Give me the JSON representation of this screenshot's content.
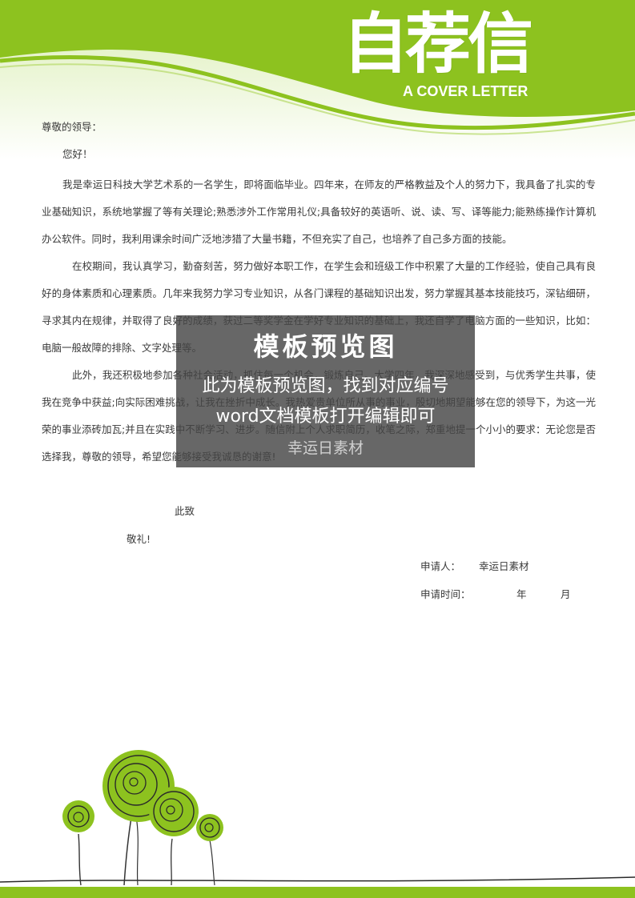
{
  "header": {
    "title": "自荐信",
    "subtitle": "A COVER LETTER"
  },
  "colors": {
    "brand_green": "#8dc21f",
    "light_green": "#e8f2cf",
    "text": "#3a3a3a",
    "watermark_bg": "#464646"
  },
  "letter": {
    "salutation": "尊敬的领导：",
    "greeting": "您好！",
    "p1": "我是幸运日科技大学艺术系的一名学生，即将面临毕业。四年来，在师友的严格教益及个人的努力下，我具备了扎实的专业基础知识，系统地掌握了等有关理论;熟悉涉外工作常用礼仪;具备较好的英语听、说、读、写、译等能力;能熟练操作计算机办公软件。同时，我利用课余时间广泛地涉猎了大量书籍，不但充实了自己，也培养了自己多方面的技能。",
    "p2": "在校期间，我认真学习，勤奋刻苦，努力做好本职工作，在学生会和班级工作中积累了大量的工作经验，使自己具有良好的身体素质和心理素质。几年来我努力学习专业知识，从各门课程的基础知识出发，努力掌握其基本技能技巧，深钻细研，寻求其内在规律，并取得了良好的成绩，获过二等奖学金在学好专业知识的基础上，我还自学了电脑方面的一些知识，比如：电脑一般故障的排除、文字处理等。",
    "p3": "此外，我还积极地参加各种社会活动，抓住每一个机会，锻炼自己。大学四年，我深深地感受到，与优秀学生共事，使我在竞争中获益;向实际困难挑战，让我在挫折中成长。我热爱贵单位所从事的事业，殷切地期望能够在您的领导下，为这一光荣的事业添砖加瓦;并且在实践中不断学习、进步。随信附上个人求职简历，收笔之际，郑重地提一个小小的要求：无论您是否选择我，尊敬的领导，希望您能够接受我诚恳的谢意!",
    "closing1": "此致",
    "closing2": "敬礼!"
  },
  "signature": {
    "applicant_label": "申请人：",
    "applicant_name": "幸运日素材",
    "date_label": "申请时间：",
    "year_label": "年",
    "month_label": "月"
  },
  "watermark": {
    "title": "模板预览图",
    "line1": "此为模板预览图，找到对应编号",
    "line2": "word文档模板打开编辑即可",
    "line3": "幸运日素材"
  }
}
